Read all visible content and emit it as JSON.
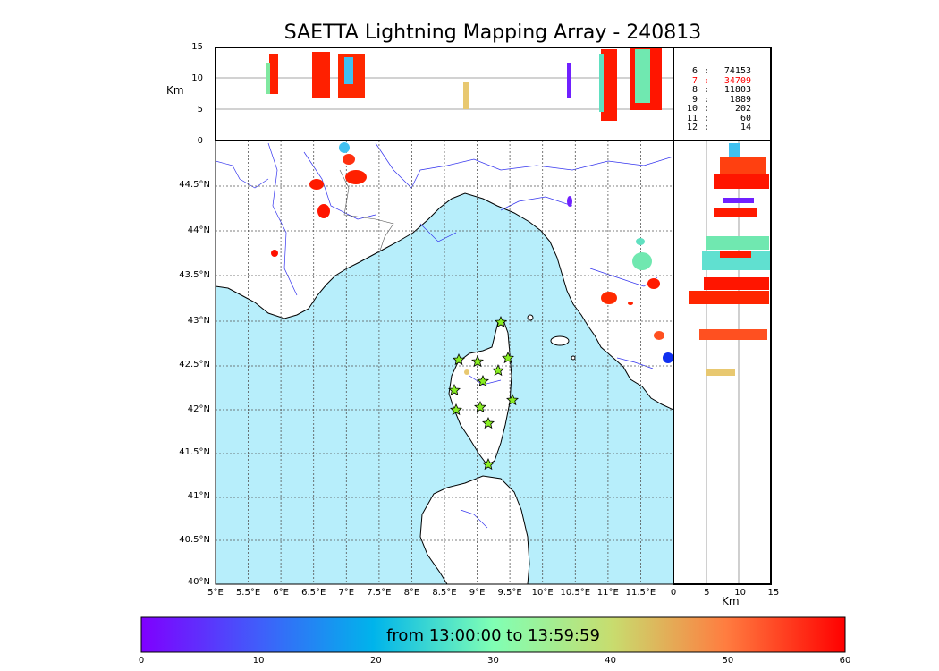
{
  "title": "SAETTA Lightning Mapping Array - 240813",
  "alt_axis": {
    "label": "Km",
    "ticks": [
      "0",
      "5",
      "10",
      "15"
    ]
  },
  "lon_ticks": [
    "5°E",
    "5.5°E",
    "6°E",
    "6.5°E",
    "7°E",
    "7.5°E",
    "8°E",
    "8.5°E",
    "9°E",
    "9.5°E",
    "10°E",
    "10.5°E",
    "11°E",
    "11.5°E"
  ],
  "lat_ticks": [
    "40°N",
    "40.5°N",
    "41°N",
    "41.5°N",
    "42°N",
    "42.5°N",
    "43°N",
    "43.5°N",
    "44°N",
    "44.5°N"
  ],
  "side_axis": {
    "label": "Km",
    "ticks": [
      "0",
      "5",
      "10",
      "15"
    ]
  },
  "stations_stats": [
    {
      "n": "6",
      "sep": ":",
      "count": "74153",
      "color": "#000000"
    },
    {
      "n": "7",
      "sep": ":",
      "count": "34709",
      "color": "#ff0000"
    },
    {
      "n": "8",
      "sep": ":",
      "count": "11803",
      "color": "#000000"
    },
    {
      "n": "9",
      "sep": ":",
      "count": "1889",
      "color": "#000000"
    },
    {
      "n": "10",
      "sep": ":",
      "count": "202",
      "color": "#000000"
    },
    {
      "n": "11",
      "sep": ":",
      "count": "60",
      "color": "#000000"
    },
    {
      "n": "12",
      "sep": ":",
      "count": "14",
      "color": "#000000"
    }
  ],
  "colorbar": {
    "label": "from 13:00:00 to 13:59:59",
    "ticks": [
      "0",
      "10",
      "20",
      "30",
      "40",
      "50",
      "60"
    ],
    "min": 0,
    "max": 60
  },
  "colors": {
    "sea": "#b7eefb",
    "land": "#ffffff",
    "river": "#3333ee",
    "grid": "#555555",
    "station": "#88ee22"
  }
}
